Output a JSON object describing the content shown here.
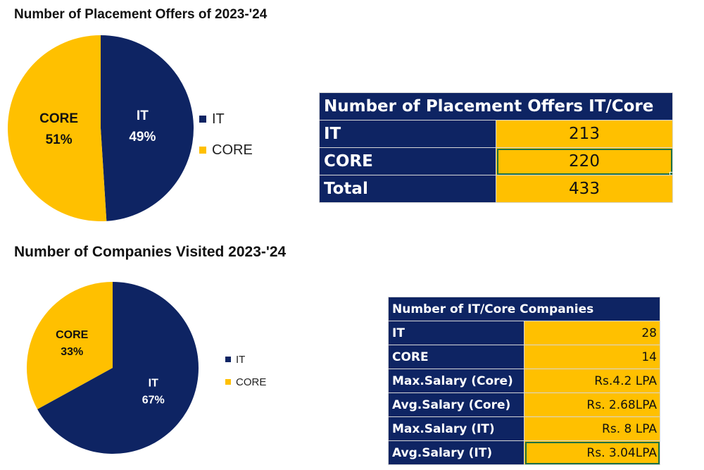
{
  "colors": {
    "it": "#0e2463",
    "core": "#ffc000",
    "label_bg": "#0e2463",
    "value_bg": "#ffc000"
  },
  "chart_data": [
    {
      "type": "pie",
      "title": "Number of Placement Offers of 2023-'24",
      "slices": [
        {
          "label": "IT",
          "value": 49,
          "percent_label": "49%",
          "color": "#0e2463",
          "text_color": "#ffffff"
        },
        {
          "label": "CORE",
          "value": 51,
          "percent_label": "51%",
          "color": "#ffc000",
          "text_color": "#111111"
        }
      ],
      "legend": [
        "IT",
        "CORE"
      ],
      "legend_position": "right"
    },
    {
      "type": "pie",
      "title": "Number of Companies Visited 2023-'24",
      "slices": [
        {
          "label": "IT",
          "value": 67,
          "percent_label": "67%",
          "color": "#0e2463",
          "text_color": "#ffffff"
        },
        {
          "label": "CORE",
          "value": 33,
          "percent_label": "33%",
          "color": "#ffc000",
          "text_color": "#111111"
        }
      ],
      "legend": [
        "IT",
        "CORE"
      ],
      "legend_position": "right"
    }
  ],
  "tables": [
    {
      "header": "Number of Placement Offers IT/Core",
      "rows": [
        {
          "label": "IT",
          "value": "213"
        },
        {
          "label": "CORE",
          "value": "220"
        },
        {
          "label": "Total",
          "value": "433"
        }
      ]
    },
    {
      "header": "Number of IT/Core Companies",
      "rows": [
        {
          "label": "IT",
          "value": "28"
        },
        {
          "label": "CORE",
          "value": "14"
        },
        {
          "label": "Max.Salary (Core)",
          "value": "Rs.4.2 LPA"
        },
        {
          "label": "Avg.Salary (Core)",
          "value": "Rs. 2.68LPA"
        },
        {
          "label": "Max.Salary (IT)",
          "value": "Rs. 8 LPA"
        },
        {
          "label": "Avg.Salary (IT)",
          "value": "Rs. 3.04LPA"
        }
      ]
    }
  ]
}
